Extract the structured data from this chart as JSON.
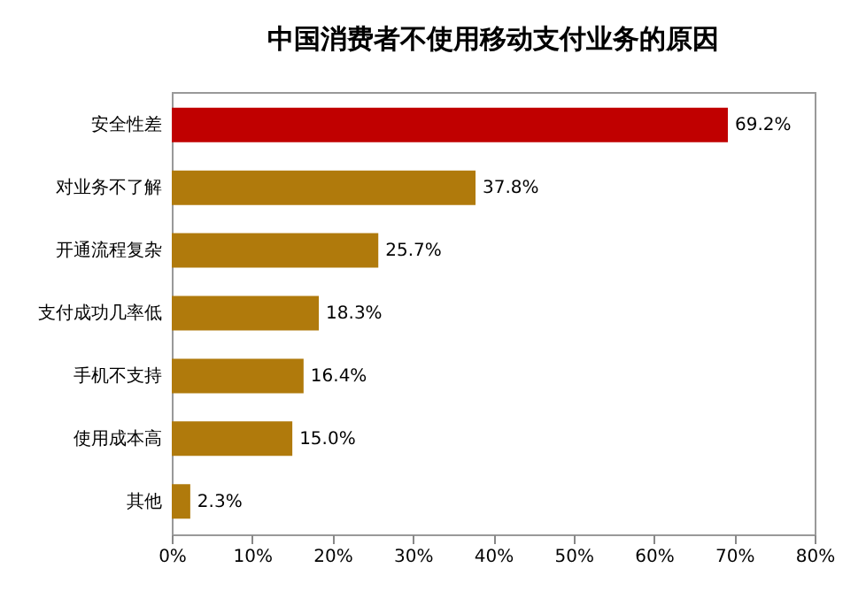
{
  "chart_data": {
    "type": "bar",
    "orientation": "horizontal",
    "title": "中国消费者不使用移动支付业务的原因",
    "categories": [
      "安全性差",
      "对业务不了解",
      "开通流程复杂",
      "支付成功几率低",
      "手机不支持",
      "使用成本高",
      "其他"
    ],
    "values": [
      69.2,
      37.8,
      25.7,
      18.3,
      16.4,
      15.0,
      2.3
    ],
    "colors": [
      "#c00000",
      "#b07a0c",
      "#b07a0c",
      "#b07a0c",
      "#b07a0c",
      "#b07a0c",
      "#b07a0c"
    ],
    "value_labels": [
      "69.2%",
      "37.8%",
      "25.7%",
      "18.3%",
      "16.4%",
      "15.0%",
      "2.3%"
    ],
    "xlim": [
      0,
      80
    ],
    "xticks": [
      {
        "value": 0,
        "label": "0%"
      },
      {
        "value": 10,
        "label": "10%"
      },
      {
        "value": 20,
        "label": "20%"
      },
      {
        "value": 30,
        "label": "30%"
      },
      {
        "value": 40,
        "label": "40%"
      },
      {
        "value": 50,
        "label": "50%"
      },
      {
        "value": 60,
        "label": "60%"
      },
      {
        "value": 70,
        "label": "70%"
      },
      {
        "value": 80,
        "label": "80%"
      }
    ]
  }
}
